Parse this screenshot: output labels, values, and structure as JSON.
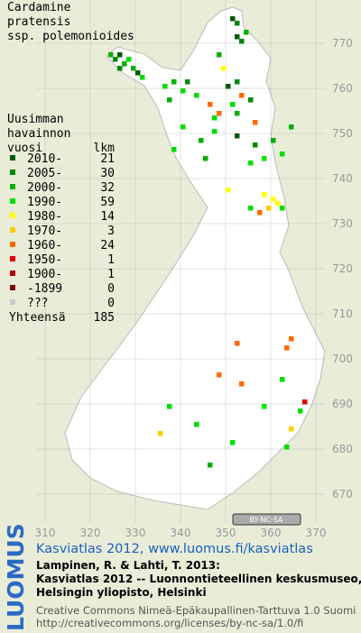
{
  "title_lines": [
    "Cardamine",
    "pratensis",
    "ssp. polemonioides"
  ],
  "legend": {
    "heading": [
      "Uusimman",
      "havainnon",
      "vuosi"
    ],
    "count_heading": "lkm",
    "rows": [
      {
        "label": "2010-",
        "count": 21,
        "color": "#005a00",
        "squares": [
          [
            351,
            775
          ],
          [
            352,
            771
          ],
          [
            326,
            767
          ],
          [
            330,
            763
          ],
          [
            350,
            760
          ],
          [
            352,
            749
          ]
        ]
      },
      {
        "label": "2005-",
        "count": 30,
        "color": "#008800",
        "squares": [
          [
            352,
            774
          ],
          [
            353,
            770
          ],
          [
            325,
            766
          ],
          [
            326,
            764
          ],
          [
            341,
            761
          ],
          [
            352,
            761
          ],
          [
            355,
            757
          ],
          [
            356,
            747
          ]
        ]
      },
      {
        "label": "2000-",
        "count": 32,
        "color": "#00b000",
        "squares": [
          [
            354,
            772
          ],
          [
            324,
            767
          ],
          [
            327,
            765
          ],
          [
            329,
            764
          ],
          [
            338,
            761
          ],
          [
            337,
            757
          ],
          [
            348,
            767
          ],
          [
            352,
            754
          ],
          [
            344,
            748
          ],
          [
            360,
            748
          ],
          [
            345,
            744
          ],
          [
            364,
            751
          ],
          [
            346,
            676
          ]
        ]
      },
      {
        "label": "1990-",
        "count": 59,
        "color": "#00e000",
        "squares": [
          [
            328,
            766
          ],
          [
            331,
            762
          ],
          [
            336,
            760
          ],
          [
            340,
            759
          ],
          [
            343,
            758
          ],
          [
            351,
            756
          ],
          [
            347,
            753
          ],
          [
            340,
            751
          ],
          [
            347,
            750
          ],
          [
            358,
            744
          ],
          [
            362,
            745
          ],
          [
            355,
            743
          ],
          [
            338,
            746
          ],
          [
            362,
            733
          ],
          [
            355,
            733
          ],
          [
            362,
            695
          ],
          [
            366,
            688
          ],
          [
            363,
            680
          ],
          [
            358,
            689
          ],
          [
            343,
            685
          ],
          [
            351,
            681
          ],
          [
            337,
            689
          ]
        ]
      },
      {
        "label": "1980-",
        "count": 14,
        "color": "#ffff00",
        "squares": [
          [
            349,
            764
          ],
          [
            360,
            735
          ],
          [
            361,
            734
          ],
          [
            358,
            736
          ],
          [
            350,
            737
          ]
        ]
      },
      {
        "label": "1970-",
        "count": 3,
        "color": "#ffcc00",
        "squares": [
          [
            359,
            733
          ],
          [
            364,
            684
          ],
          [
            335,
            683
          ]
        ]
      },
      {
        "label": "1960-",
        "count": 24,
        "color": "#ff6a00",
        "squares": [
          [
            353,
            758
          ],
          [
            356,
            752
          ],
          [
            346,
            756
          ],
          [
            348,
            754
          ],
          [
            357,
            732
          ],
          [
            363,
            702
          ],
          [
            364,
            704
          ],
          [
            353,
            694
          ],
          [
            352,
            703
          ],
          [
            348,
            696
          ]
        ]
      },
      {
        "label": "1950-",
        "count": 1,
        "color": "#e00000",
        "squares": [
          [
            367,
            690
          ]
        ]
      },
      {
        "label": "1900-",
        "count": 1,
        "color": "#b00000",
        "squares": []
      },
      {
        "label": "-1899",
        "count": 0,
        "color": "#800000",
        "squares": []
      },
      {
        "label": "???",
        "count": 0,
        "color": "#c8c8c8",
        "squares": []
      }
    ],
    "total_label": "Yhteensä",
    "total": 185
  },
  "axes": {
    "x_ticks": [
      310,
      320,
      330,
      340,
      350,
      360,
      370
    ],
    "y_ticks": [
      670,
      680,
      690,
      700,
      710,
      720,
      730,
      740,
      750,
      760,
      770
    ]
  },
  "cc_badge": "BY-NC-SA",
  "footer": {
    "logo": "LUOMUS",
    "link": "Kasviatlas 2012, www.luomus.fi/kasviatlas",
    "citation": [
      "Lampinen, R. & Lahti, T. 2013:",
      "Kasviatlas 2012 -- Luonnontieteellinen keskusmuseo,",
      "Helsingin yliopisto, Helsinki"
    ],
    "license": [
      "Creative Commons Nimeä-Epäkaupallinen-Tarttuva 1.0 Suomi",
      "http://creativecommons.org/licenses/by-nc-sa/1.0/fi"
    ]
  }
}
